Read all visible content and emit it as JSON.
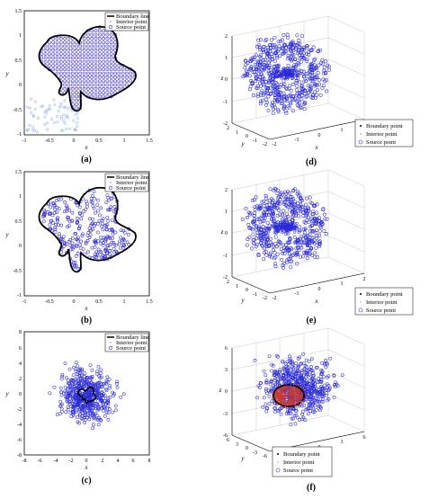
{
  "panels": {
    "a": {
      "caption": "(a)",
      "xlabel": "x",
      "ylabel": "y",
      "xticks": [
        "-1",
        "-0.5",
        "0",
        "0.5",
        "1",
        "1.5"
      ],
      "yticks": [
        "1.5",
        "1",
        "0.5",
        "0",
        "-0.5",
        "-1"
      ],
      "legend": [
        "Boundary line",
        "Interior point",
        "Source point"
      ]
    },
    "b": {
      "caption": "(b)",
      "xlabel": "x",
      "ylabel": "y",
      "xticks": [
        "-1",
        "-0.5",
        "0",
        "0.5",
        "1",
        "1.5"
      ],
      "yticks": [
        "1.5",
        "1",
        "0.5",
        "0",
        "-0.5",
        "-1"
      ],
      "legend": [
        "Boundary line",
        "Interior point",
        "Source point"
      ]
    },
    "c": {
      "caption": "(c)",
      "xlabel": "x",
      "ylabel": "y",
      "xticks": [
        "-8",
        "-6",
        "-4",
        "-2",
        "0",
        "2",
        "4",
        "6",
        "8"
      ],
      "yticks": [
        "8",
        "6",
        "4",
        "2",
        "0",
        "-2",
        "-4",
        "-6",
        "-8"
      ],
      "legend": [
        "Boundary line",
        "Interior point",
        "Source point"
      ]
    },
    "d": {
      "caption": "(d)",
      "zlabel": "z",
      "xlabel": "x",
      "ylabel": "y",
      "zticks": [
        "2",
        "1",
        "0",
        "-1",
        "-2"
      ],
      "xticks": [
        "-2",
        "-1",
        "0",
        "1",
        "2"
      ],
      "yticks": [
        "-2",
        "-1",
        "0",
        "1",
        "2"
      ],
      "legend": [
        "Boundary point",
        "Interior point",
        "Source point"
      ]
    },
    "e": {
      "caption": "(e)",
      "zlabel": "z",
      "xlabel": "x",
      "ylabel": "y",
      "zticks": [
        "2",
        "1",
        "0",
        "-1",
        "-2"
      ],
      "xticks": [
        "-2",
        "-1",
        "0",
        "1",
        "2"
      ],
      "yticks": [
        "-2",
        "-1",
        "0",
        "1",
        "2"
      ],
      "legend": [
        "Boundary point",
        "Interior point",
        "Source point"
      ]
    },
    "f": {
      "caption": "(f)",
      "zlabel": "z",
      "xlabel": "x",
      "ylabel": "y",
      "zticks": [
        "6",
        "3",
        "0",
        "-3",
        "-6"
      ],
      "xticks": [
        "-6",
        "-3",
        "0",
        "3",
        "6"
      ],
      "yticks": [
        "-6",
        "-3",
        "0",
        "3",
        "6"
      ],
      "legend": [
        "Boundary point",
        "Interior point",
        "Source point"
      ]
    }
  },
  "colors": {
    "boundary": "#000000",
    "interior": "#e07070",
    "source": "#2a2ad8",
    "source_faint": "#9fb9e8",
    "core": "#cc3a30"
  }
}
